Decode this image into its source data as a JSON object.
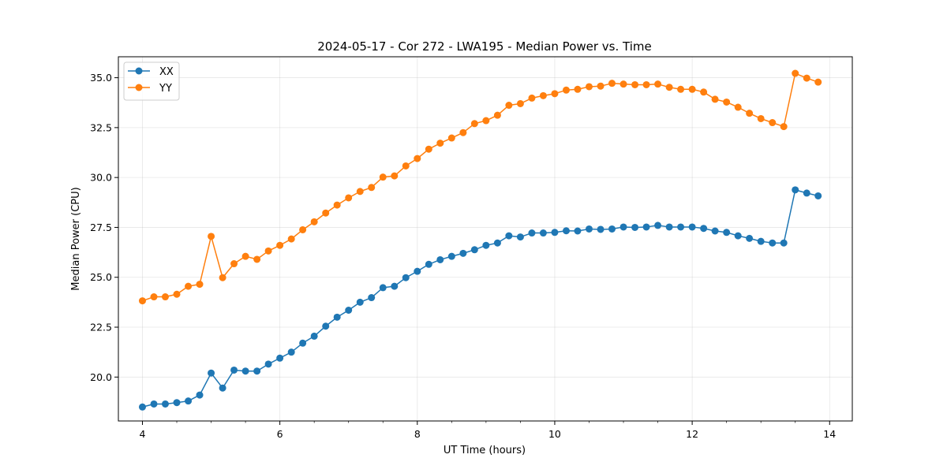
{
  "chart_data": {
    "type": "line",
    "title": "2024-05-17 - Cor 272 - LWA195 - Median Power vs. Time",
    "xlabel": "UT Time (hours)",
    "ylabel": "Median Power (CPU)",
    "xlim": [
      3.65,
      14.33
    ],
    "ylim": [
      17.8,
      36.05
    ],
    "xticks": [
      4,
      6,
      8,
      10,
      12,
      14
    ],
    "xtick_labels": [
      "4",
      "6",
      "8",
      "10",
      "12",
      "14"
    ],
    "yticks": [
      20.0,
      22.5,
      25.0,
      27.5,
      30.0,
      32.5,
      35.0
    ],
    "ytick_labels": [
      "20.0",
      "22.5",
      "25.0",
      "27.5",
      "30.0",
      "32.5",
      "35.0"
    ],
    "grid": true,
    "legend_position": "top-left",
    "x": [
      4.0,
      4.167,
      4.333,
      4.5,
      4.667,
      4.833,
      5.0,
      5.167,
      5.333,
      5.5,
      5.667,
      5.833,
      6.0,
      6.167,
      6.333,
      6.5,
      6.667,
      6.833,
      7.0,
      7.167,
      7.333,
      7.5,
      7.667,
      7.833,
      8.0,
      8.167,
      8.333,
      8.5,
      8.667,
      8.833,
      9.0,
      9.167,
      9.333,
      9.5,
      9.667,
      9.833,
      10.0,
      10.167,
      10.333,
      10.5,
      10.667,
      10.833,
      11.0,
      11.167,
      11.333,
      11.5,
      11.667,
      11.833,
      12.0,
      12.167,
      12.333,
      12.5,
      12.667,
      12.833,
      13.0,
      13.167,
      13.333,
      13.5,
      13.667,
      13.833
    ],
    "series": [
      {
        "name": "XX",
        "color": "#1f77b4",
        "values": [
          18.5,
          18.65,
          18.65,
          18.72,
          18.8,
          19.1,
          20.2,
          19.45,
          20.35,
          20.3,
          20.3,
          20.65,
          20.95,
          21.25,
          21.7,
          22.05,
          22.55,
          23.0,
          23.35,
          23.75,
          23.98,
          24.48,
          24.55,
          24.98,
          25.3,
          25.65,
          25.88,
          26.05,
          26.2,
          26.38,
          26.6,
          26.72,
          27.08,
          27.02,
          27.22,
          27.22,
          27.25,
          27.33,
          27.32,
          27.42,
          27.4,
          27.42,
          27.52,
          27.5,
          27.52,
          27.6,
          27.52,
          27.52,
          27.52,
          27.45,
          27.32,
          27.25,
          27.08,
          26.95,
          26.8,
          26.72,
          26.72,
          29.38,
          29.22,
          29.08
        ]
      },
      {
        "name": "YY",
        "color": "#ff7f0e",
        "values": [
          23.82,
          24.02,
          24.02,
          24.15,
          24.55,
          24.65,
          27.05,
          24.98,
          25.68,
          26.05,
          25.9,
          26.32,
          26.6,
          26.92,
          27.38,
          27.78,
          28.22,
          28.62,
          28.98,
          29.3,
          29.5,
          30.02,
          30.08,
          30.58,
          30.95,
          31.42,
          31.72,
          31.98,
          32.25,
          32.7,
          32.85,
          33.12,
          33.62,
          33.7,
          33.98,
          34.1,
          34.2,
          34.38,
          34.42,
          34.55,
          34.58,
          34.72,
          34.68,
          34.65,
          34.65,
          34.68,
          34.52,
          34.42,
          34.42,
          34.28,
          33.92,
          33.78,
          33.52,
          33.22,
          32.95,
          32.75,
          32.55,
          35.22,
          34.98,
          34.78
        ]
      }
    ]
  }
}
